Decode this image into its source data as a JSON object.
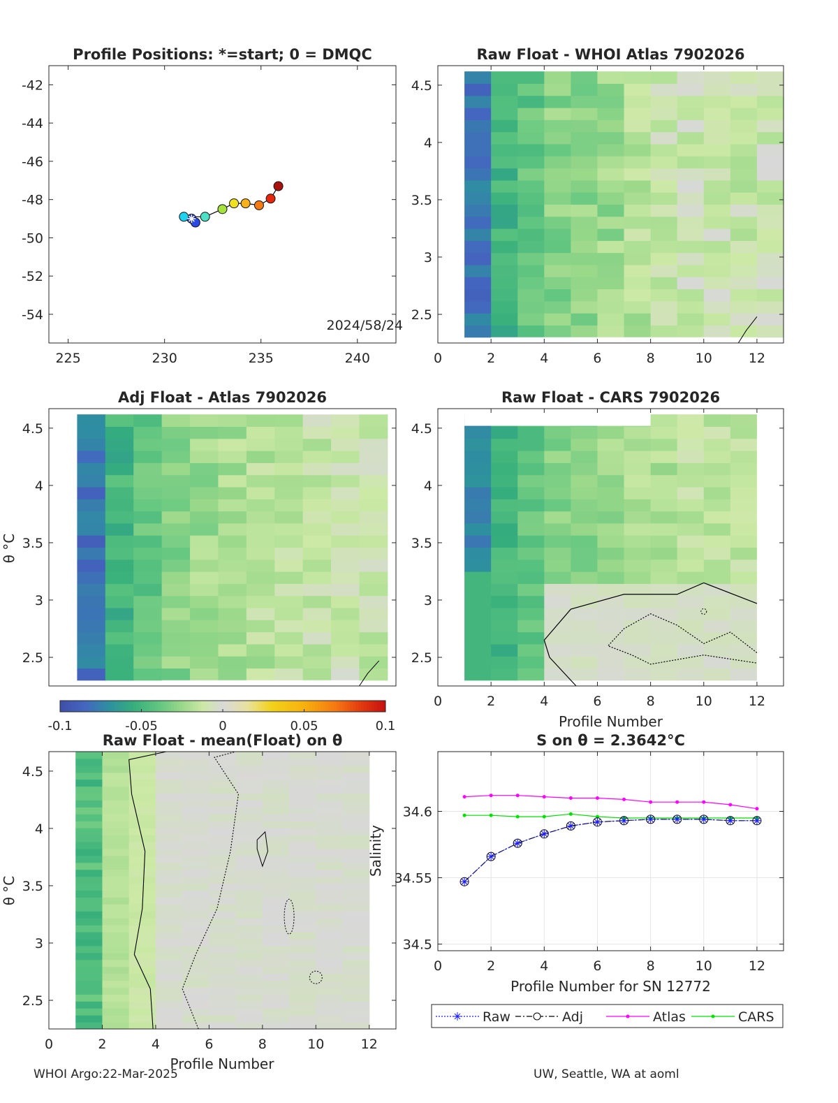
{
  "chart_data": [
    {
      "type": "scatter",
      "title": "Profile Positions: *=start; 0 = DMQC",
      "xlim": [
        224,
        242
      ],
      "ylim": [
        -55.5,
        -41
      ],
      "xticks": [
        "225",
        "230",
        "235",
        "240"
      ],
      "xtick_values": [
        225,
        230,
        235,
        240
      ],
      "yticks": [
        "-42",
        "-44",
        "-46",
        "-48",
        "-50",
        "-52",
        "-54"
      ],
      "ytick_values": [
        -42,
        -44,
        -46,
        -48,
        -50,
        -52,
        -54
      ],
      "annotation": "2024/58/24",
      "points": [
        {
          "lon": 231.4,
          "lat": -49.0,
          "color": "#1b2fd6"
        },
        {
          "lon": 231.6,
          "lat": -49.2,
          "color": "#2a49e6"
        },
        {
          "lon": 231.0,
          "lat": -48.9,
          "color": "#1fd2f0"
        },
        {
          "lon": 232.1,
          "lat": -48.9,
          "color": "#4ee0c4"
        },
        {
          "lon": 233.0,
          "lat": -48.5,
          "color": "#a6e23c"
        },
        {
          "lon": 233.6,
          "lat": -48.2,
          "color": "#f0e21e"
        },
        {
          "lon": 234.2,
          "lat": -48.2,
          "color": "#f7b21a"
        },
        {
          "lon": 234.9,
          "lat": -48.3,
          "color": "#f57a12"
        },
        {
          "lon": 235.5,
          "lat": -47.95,
          "color": "#e3260d"
        },
        {
          "lon": 235.9,
          "lat": -47.3,
          "color": "#a9120c"
        }
      ],
      "start_marker": {
        "lon": 231.4,
        "lat": -49.0
      }
    },
    {
      "type": "heatmap",
      "title": "Raw Float - WHOI Atlas  7902026",
      "xlim": [
        0,
        13
      ],
      "ylim": [
        2.25,
        4.67
      ],
      "xticks": [
        "0",
        "2",
        "4",
        "6",
        "8",
        "10",
        "12"
      ],
      "yticks": [
        "2.5",
        "3",
        "3.5",
        "4",
        "4.5"
      ],
      "colorbar_range": [
        -0.1,
        0.1
      ]
    },
    {
      "type": "heatmap",
      "title": "Adj Float - Atlas  7902026",
      "ylabel": "θ °C",
      "xlim": [
        0,
        12
      ],
      "ylim": [
        2.25,
        4.67
      ],
      "yticks": [
        "2.5",
        "3",
        "3.5",
        "4",
        "4.5"
      ],
      "colorbar_range": [
        -0.1,
        0.1
      ]
    },
    {
      "type": "heatmap",
      "title": "Raw Float - CARS  7902026",
      "xlabel": "Profile Number",
      "xlim": [
        0,
        13
      ],
      "ylim": [
        2.25,
        4.67
      ],
      "xticks": [
        "0",
        "2",
        "4",
        "6",
        "8",
        "10",
        "12"
      ],
      "yticks": [
        "2.5",
        "3",
        "3.5",
        "4",
        "4.5"
      ],
      "colorbar_range": [
        -0.1,
        0.1
      ]
    },
    {
      "type": "heatmap",
      "title": "Raw Float - mean(Float) on θ",
      "ylabel": "θ °C",
      "xlabel": "Profile Number",
      "xlim": [
        0,
        13
      ],
      "ylim": [
        2.25,
        4.67
      ],
      "xticks": [
        "0",
        "2",
        "4",
        "6",
        "8",
        "10",
        "12"
      ],
      "yticks": [
        "2.5",
        "3",
        "3.5",
        "4",
        "4.5"
      ]
    },
    {
      "type": "line",
      "title": "S on θ = 2.3642°C",
      "xlabel": "Profile Number for SN 12772",
      "ylabel": "Salinity",
      "xlim": [
        0,
        13
      ],
      "ylim": [
        34.495,
        34.645
      ],
      "grid": true,
      "legend_position": "bottom",
      "x": [
        1,
        2,
        3,
        4,
        5,
        6,
        7,
        8,
        9,
        10,
        11,
        12
      ],
      "series": [
        {
          "name": "Raw",
          "color": "#1c1cff",
          "values": [
            34.547,
            34.566,
            34.576,
            34.583,
            34.589,
            34.592,
            34.593,
            34.594,
            34.594,
            34.594,
            34.593,
            34.593
          ]
        },
        {
          "name": "Adj",
          "color": "#000000",
          "values": [
            34.547,
            34.566,
            34.576,
            34.583,
            34.589,
            34.592,
            34.593,
            34.594,
            34.594,
            34.594,
            34.593,
            34.593
          ]
        },
        {
          "name": "Atlas",
          "color": "#ff00ff",
          "values": [
            34.611,
            34.612,
            34.612,
            34.611,
            34.61,
            34.61,
            34.609,
            34.607,
            34.607,
            34.607,
            34.605,
            34.602
          ]
        },
        {
          "name": "CARS",
          "color": "#00e000",
          "values": [
            34.597,
            34.597,
            34.596,
            34.596,
            34.598,
            34.596,
            34.595,
            34.595,
            34.595,
            34.595,
            34.595,
            34.595
          ]
        }
      ]
    }
  ],
  "colorbar": {
    "ticks": [
      "-0.1",
      "-0.05",
      "0",
      "0.05",
      "0.1"
    ],
    "values": [
      -0.1,
      -0.05,
      0,
      0.05,
      0.1
    ]
  },
  "footer": {
    "left": "WHOI Argo:22-Mar-2025",
    "right": "UW, Seattle, WA at aoml"
  }
}
